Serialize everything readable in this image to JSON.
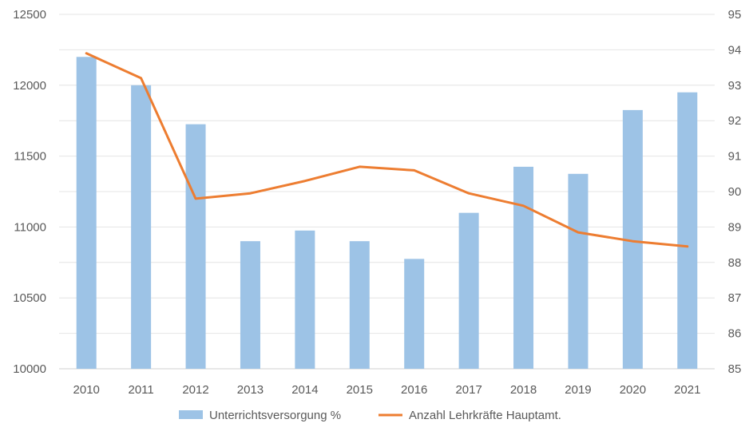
{
  "chart_data": {
    "type": "bar",
    "title": "",
    "categories": [
      "2010",
      "2011",
      "2012",
      "2013",
      "2014",
      "2015",
      "2016",
      "2017",
      "2018",
      "2019",
      "2020",
      "2021"
    ],
    "series": [
      {
        "name": "Unterrichtsversorgung %",
        "type": "bar",
        "axis": "left",
        "color": "#9dc3e6",
        "values": [
          12200,
          12000,
          11725,
          10900,
          10975,
          10900,
          10775,
          11100,
          11425,
          11375,
          11825,
          11950
        ]
      },
      {
        "name": "Anzahl Lehrkräfte Hauptamt.",
        "type": "line",
        "axis": "right",
        "color": "#ed7d31",
        "values": [
          93.9,
          93.2,
          89.8,
          89.95,
          90.3,
          90.7,
          90.6,
          89.95,
          89.6,
          88.85,
          88.6,
          88.45
        ]
      }
    ],
    "y_left": {
      "min": 10000,
      "max": 12500,
      "step": 500
    },
    "y_right": {
      "min": 85,
      "max": 95,
      "step": 1
    },
    "grid": true,
    "legend": "bottom"
  }
}
